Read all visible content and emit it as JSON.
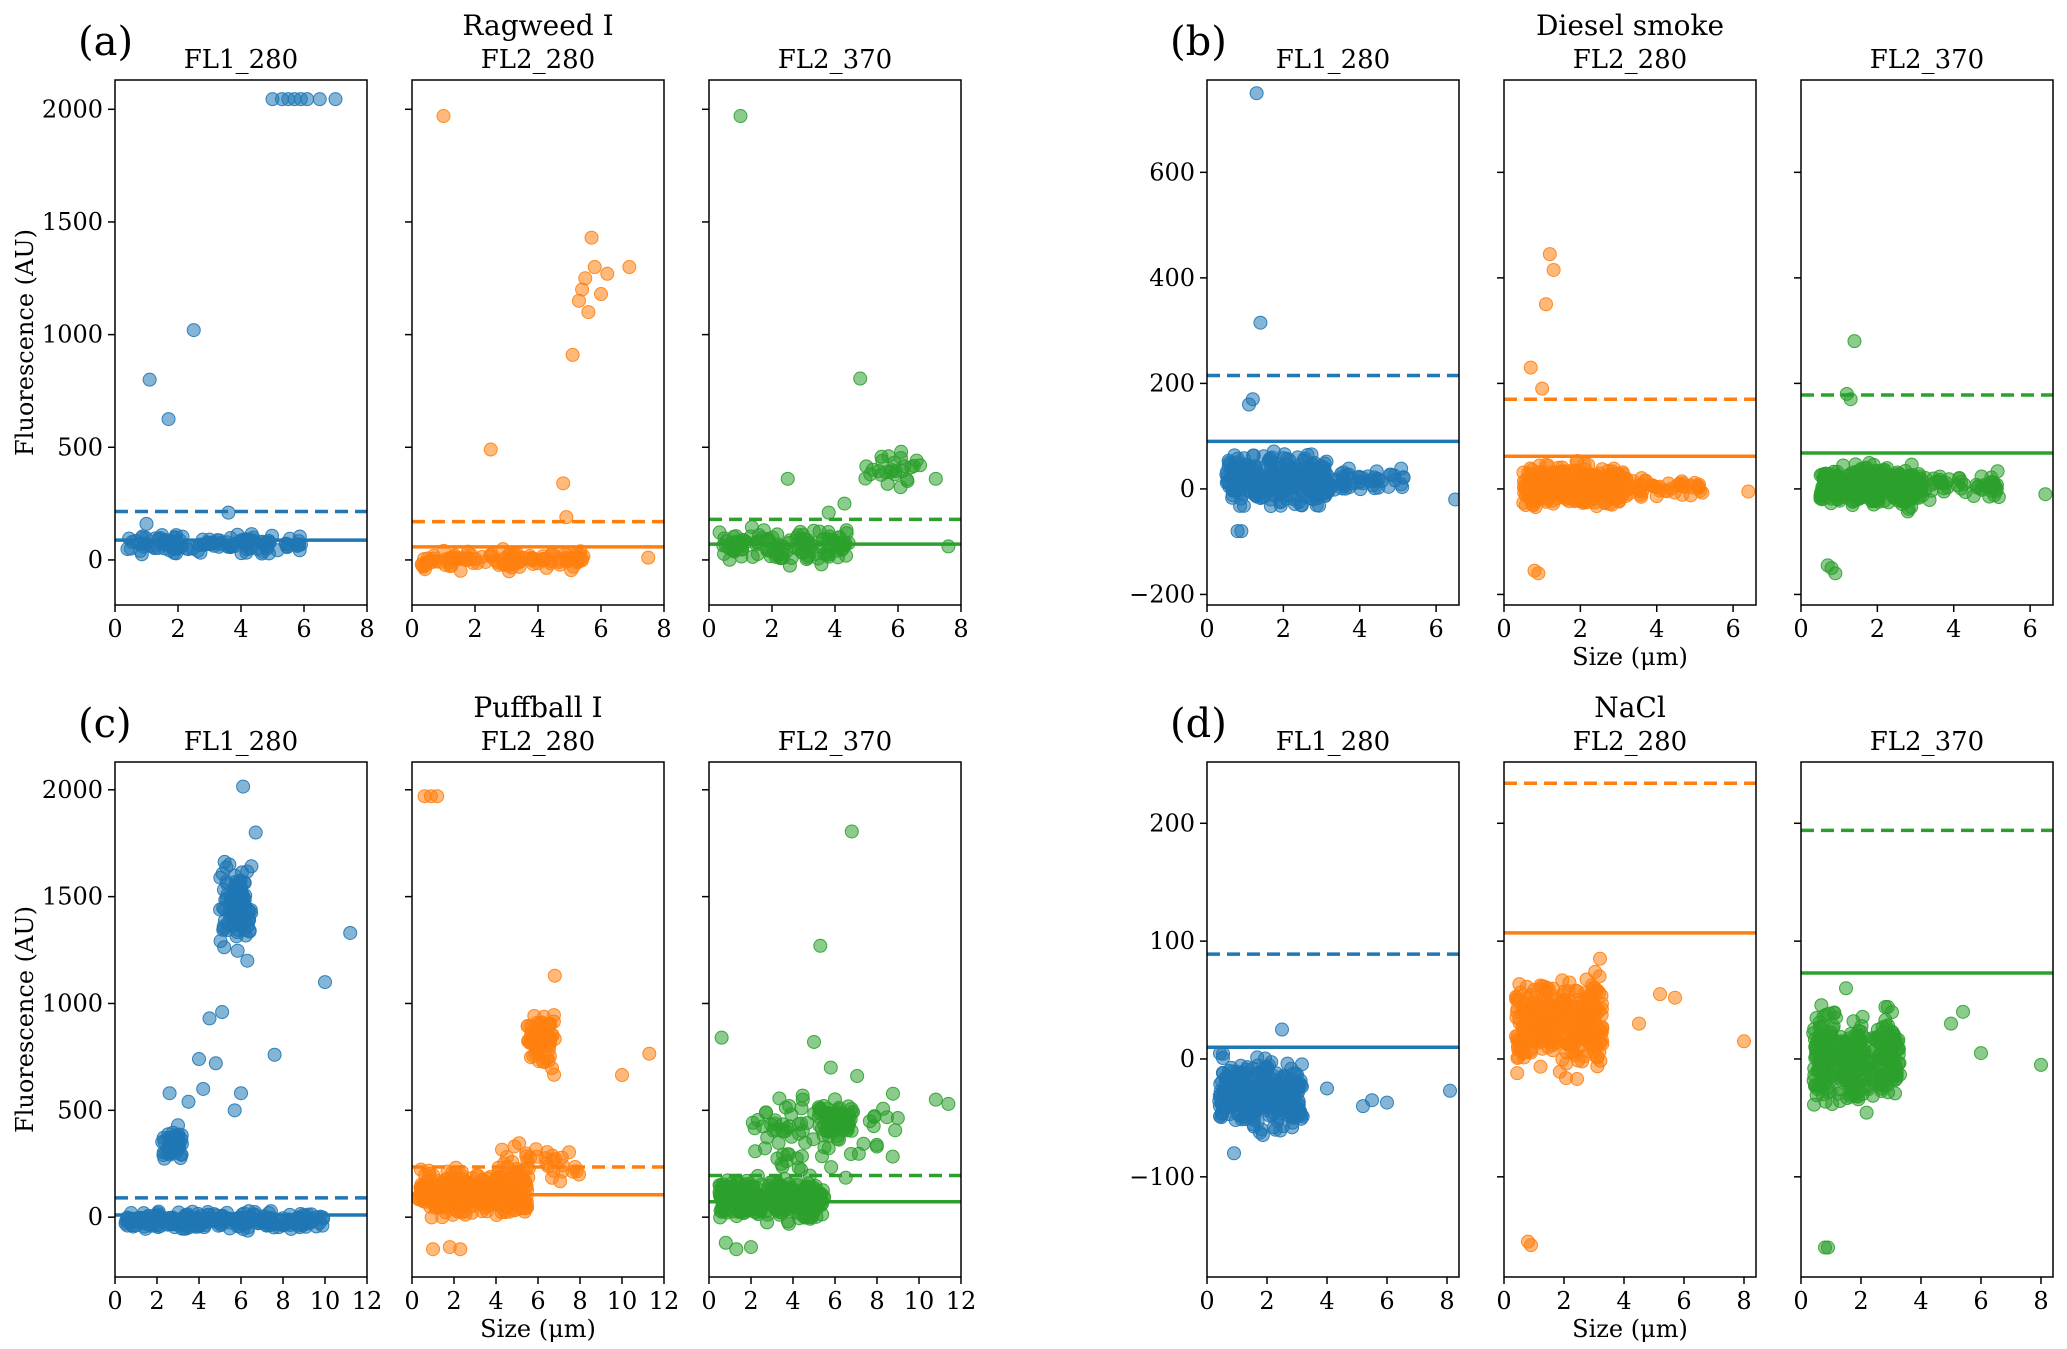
{
  "figure": {
    "size_label": "Size (μm)"
  },
  "colors": {
    "FL1_280": "#1f77b4",
    "FL2_280": "#ff7f0e",
    "FL2_370": "#2ca02c"
  },
  "chart_data": [
    {
      "type": "scatter",
      "label": "(a)",
      "title": "Ragweed I",
      "ylabel": "Fluorescence (AU)",
      "show_xlabel": false,
      "xlim": [
        0,
        8
      ],
      "ylim": [
        -200,
        2130
      ],
      "xticks": [
        0,
        2,
        4,
        6,
        8
      ],
      "yticks": [
        0,
        500,
        1000,
        1500,
        2000
      ],
      "panels": [
        {
          "name": "FL1_280",
          "solid": 88,
          "dashed": 215,
          "x": [
            0.5,
            1.0,
            1.1,
            1.7,
            2.5,
            5.0,
            5.3,
            5.5,
            5.7,
            5.9,
            6.1,
            6.5,
            7.0,
            3.6,
            0.8,
            2.1,
            3.0,
            4.7
          ],
          "y": [
            50,
            160,
            800,
            625,
            1020,
            2045,
            2045,
            2045,
            2045,
            2045,
            2045,
            2045,
            2045,
            210,
            40,
            60,
            90,
            70
          ],
          "clusters": [
            {
              "x0": 0.3,
              "x1": 6.0,
              "y0": 10,
              "y1": 130,
              "n": 120
            }
          ]
        },
        {
          "name": "FL2_280",
          "solid": 58,
          "dashed": 170,
          "x": [
            1.0,
            2.5,
            4.8,
            5.1,
            5.3,
            5.4,
            5.5,
            5.6,
            5.7,
            5.8,
            6.0,
            6.2,
            6.9,
            7.5,
            4.9,
            3.1
          ],
          "y": [
            1970,
            490,
            340,
            910,
            1150,
            1200,
            1250,
            1100,
            1430,
            1300,
            1180,
            1270,
            1300,
            10,
            190,
            20
          ],
          "clusters": [
            {
              "x0": 0.3,
              "x1": 5.5,
              "y0": -60,
              "y1": 60,
              "n": 110
            }
          ]
        },
        {
          "name": "FL2_370",
          "solid": 70,
          "dashed": 180,
          "x": [
            1.0,
            4.8,
            5.2,
            5.5,
            5.7,
            5.9,
            6.1,
            6.3,
            6.7,
            7.2,
            7.6,
            2.5,
            3.8,
            4.3
          ],
          "y": [
            1970,
            805,
            400,
            440,
            460,
            380,
            480,
            350,
            420,
            360,
            60,
            360,
            210,
            250
          ],
          "clusters": [
            {
              "x0": 0.3,
              "x1": 4.5,
              "y0": -40,
              "y1": 170,
              "n": 120
            },
            {
              "x0": 4.8,
              "x1": 6.6,
              "y0": 300,
              "y1": 490,
              "n": 20
            }
          ]
        }
      ]
    },
    {
      "type": "scatter",
      "label": "(b)",
      "title": "Diesel smoke",
      "ylabel": "",
      "show_xlabel": true,
      "xlim": [
        0,
        6.6
      ],
      "ylim": [
        -220,
        775
      ],
      "xticks": [
        0,
        2,
        4,
        6
      ],
      "yticks": [
        -200,
        0,
        200,
        400,
        600
      ],
      "panels": [
        {
          "name": "FL1_280",
          "solid": 90,
          "dashed": 215,
          "x": [
            1.3,
            1.4,
            0.8,
            0.9,
            6.5,
            1.1,
            1.2
          ],
          "y": [
            750,
            315,
            -80,
            -80,
            -20,
            160,
            170
          ],
          "clusters": [
            {
              "x0": 0.5,
              "x1": 3.2,
              "y0": -50,
              "y1": 80,
              "n": 320
            },
            {
              "x0": 3.2,
              "x1": 5.2,
              "y0": -20,
              "y1": 50,
              "n": 50
            }
          ]
        },
        {
          "name": "FL2_280",
          "solid": 62,
          "dashed": 170,
          "x": [
            1.2,
            1.3,
            1.1,
            0.7,
            1.0,
            6.4,
            0.8,
            0.9
          ],
          "y": [
            445,
            415,
            350,
            230,
            190,
            -5,
            -155,
            -160
          ],
          "clusters": [
            {
              "x0": 0.5,
              "x1": 3.2,
              "y0": -50,
              "y1": 60,
              "n": 320
            },
            {
              "x0": 3.2,
              "x1": 5.2,
              "y0": -30,
              "y1": 40,
              "n": 50
            }
          ]
        },
        {
          "name": "FL2_370",
          "solid": 68,
          "dashed": 178,
          "x": [
            1.4,
            1.2,
            6.4,
            0.7,
            0.8,
            0.9,
            1.3
          ],
          "y": [
            280,
            180,
            -10,
            -145,
            -150,
            -160,
            170
          ],
          "clusters": [
            {
              "x0": 0.5,
              "x1": 3.2,
              "y0": -50,
              "y1": 60,
              "n": 320
            },
            {
              "x0": 3.2,
              "x1": 5.2,
              "y0": -30,
              "y1": 40,
              "n": 50
            }
          ]
        }
      ]
    },
    {
      "type": "scatter",
      "label": "(c)",
      "title": "Puffball I",
      "ylabel": "Fluorescence (AU)",
      "show_xlabel": true,
      "xlim": [
        0,
        12
      ],
      "ylim": [
        -280,
        2130
      ],
      "xticks": [
        0,
        2,
        4,
        6,
        8,
        10,
        12
      ],
      "yticks": [
        0,
        500,
        1000,
        1500,
        2000
      ],
      "panels": [
        {
          "name": "FL1_280",
          "solid": 10,
          "dashed": 90,
          "x": [
            6.1,
            6.7,
            11.2,
            10.0,
            7.6,
            4.5,
            5.1,
            6.0,
            5.7,
            3.5,
            2.6,
            4.0,
            4.8,
            5.2,
            6.3,
            3.0,
            4.2
          ],
          "y": [
            2015,
            1800,
            1330,
            1100,
            760,
            930,
            960,
            580,
            500,
            540,
            580,
            740,
            720,
            1350,
            1200,
            430,
            600
          ],
          "clusters": [
            {
              "x0": 0.5,
              "x1": 10.0,
              "y0": -70,
              "y1": 40,
              "n": 250
            },
            {
              "x0": 2.2,
              "x1": 3.2,
              "y0": 220,
              "y1": 450,
              "n": 40
            },
            {
              "x0": 5.0,
              "x1": 6.5,
              "y0": 1180,
              "y1": 1750,
              "n": 90
            }
          ]
        },
        {
          "name": "FL2_280",
          "solid": 105,
          "dashed": 235,
          "x": [
            0.6,
            0.9,
            1.2,
            11.3,
            10.0,
            6.8,
            1.0,
            2.3,
            1.8
          ],
          "y": [
            1970,
            1970,
            1970,
            765,
            665,
            1130,
            -150,
            -150,
            -140
          ],
          "clusters": [
            {
              "x0": 0.3,
              "x1": 5.5,
              "y0": -30,
              "y1": 250,
              "n": 320
            },
            {
              "x0": 5.5,
              "x1": 6.8,
              "y0": 600,
              "y1": 1050,
              "n": 60
            },
            {
              "x0": 4.0,
              "x1": 8.0,
              "y0": 100,
              "y1": 400,
              "n": 40
            }
          ]
        },
        {
          "name": "FL2_370",
          "solid": 72,
          "dashed": 195,
          "x": [
            6.8,
            5.3,
            5.0,
            5.8,
            0.6,
            10.8,
            11.4,
            1.3,
            2.0,
            0.8
          ],
          "y": [
            1805,
            1270,
            820,
            700,
            840,
            550,
            530,
            -150,
            -140,
            -120
          ],
          "clusters": [
            {
              "x0": 0.5,
              "x1": 5.5,
              "y0": -50,
              "y1": 220,
              "n": 300
            },
            {
              "x0": 5.2,
              "x1": 6.8,
              "y0": 330,
              "y1": 570,
              "n": 60
            },
            {
              "x0": 2.0,
              "x1": 9.0,
              "y0": 100,
              "y1": 700,
              "n": 80
            }
          ]
        }
      ]
    },
    {
      "type": "scatter",
      "label": "(d)",
      "title": "NaCl",
      "ylabel": "",
      "show_xlabel": true,
      "xlim": [
        0,
        8.4
      ],
      "ylim": [
        -185,
        252
      ],
      "xticks": [
        0,
        2,
        4,
        6,
        8
      ],
      "yticks": [
        -100,
        0,
        100,
        200
      ],
      "panels": [
        {
          "name": "FL1_280",
          "solid": 10,
          "dashed": 89,
          "x": [
            8.1,
            6.0,
            5.5,
            5.2,
            4.0,
            2.5,
            0.9
          ],
          "y": [
            -27,
            -37,
            -35,
            -40,
            -25,
            25,
            -80
          ],
          "clusters": [
            {
              "x0": 0.4,
              "x1": 3.2,
              "y0": -70,
              "y1": 10,
              "n": 320
            }
          ]
        },
        {
          "name": "FL2_280",
          "solid": 107,
          "dashed": 234,
          "x": [
            0.8,
            0.9,
            8.0,
            5.7,
            5.2,
            4.5,
            3.2
          ],
          "y": [
            -155,
            -158,
            15,
            52,
            55,
            30,
            85
          ],
          "clusters": [
            {
              "x0": 0.4,
              "x1": 3.3,
              "y0": -20,
              "y1": 80,
              "n": 320
            }
          ]
        },
        {
          "name": "FL2_370",
          "solid": 73,
          "dashed": 194,
          "x": [
            0.8,
            0.9,
            8.0,
            6.0,
            5.4,
            5.0,
            1.5
          ],
          "y": [
            -160,
            -160,
            -5,
            5,
            40,
            30,
            60
          ],
          "clusters": [
            {
              "x0": 0.4,
              "x1": 3.3,
              "y0": -55,
              "y1": 55,
              "n": 320
            }
          ]
        }
      ]
    }
  ]
}
